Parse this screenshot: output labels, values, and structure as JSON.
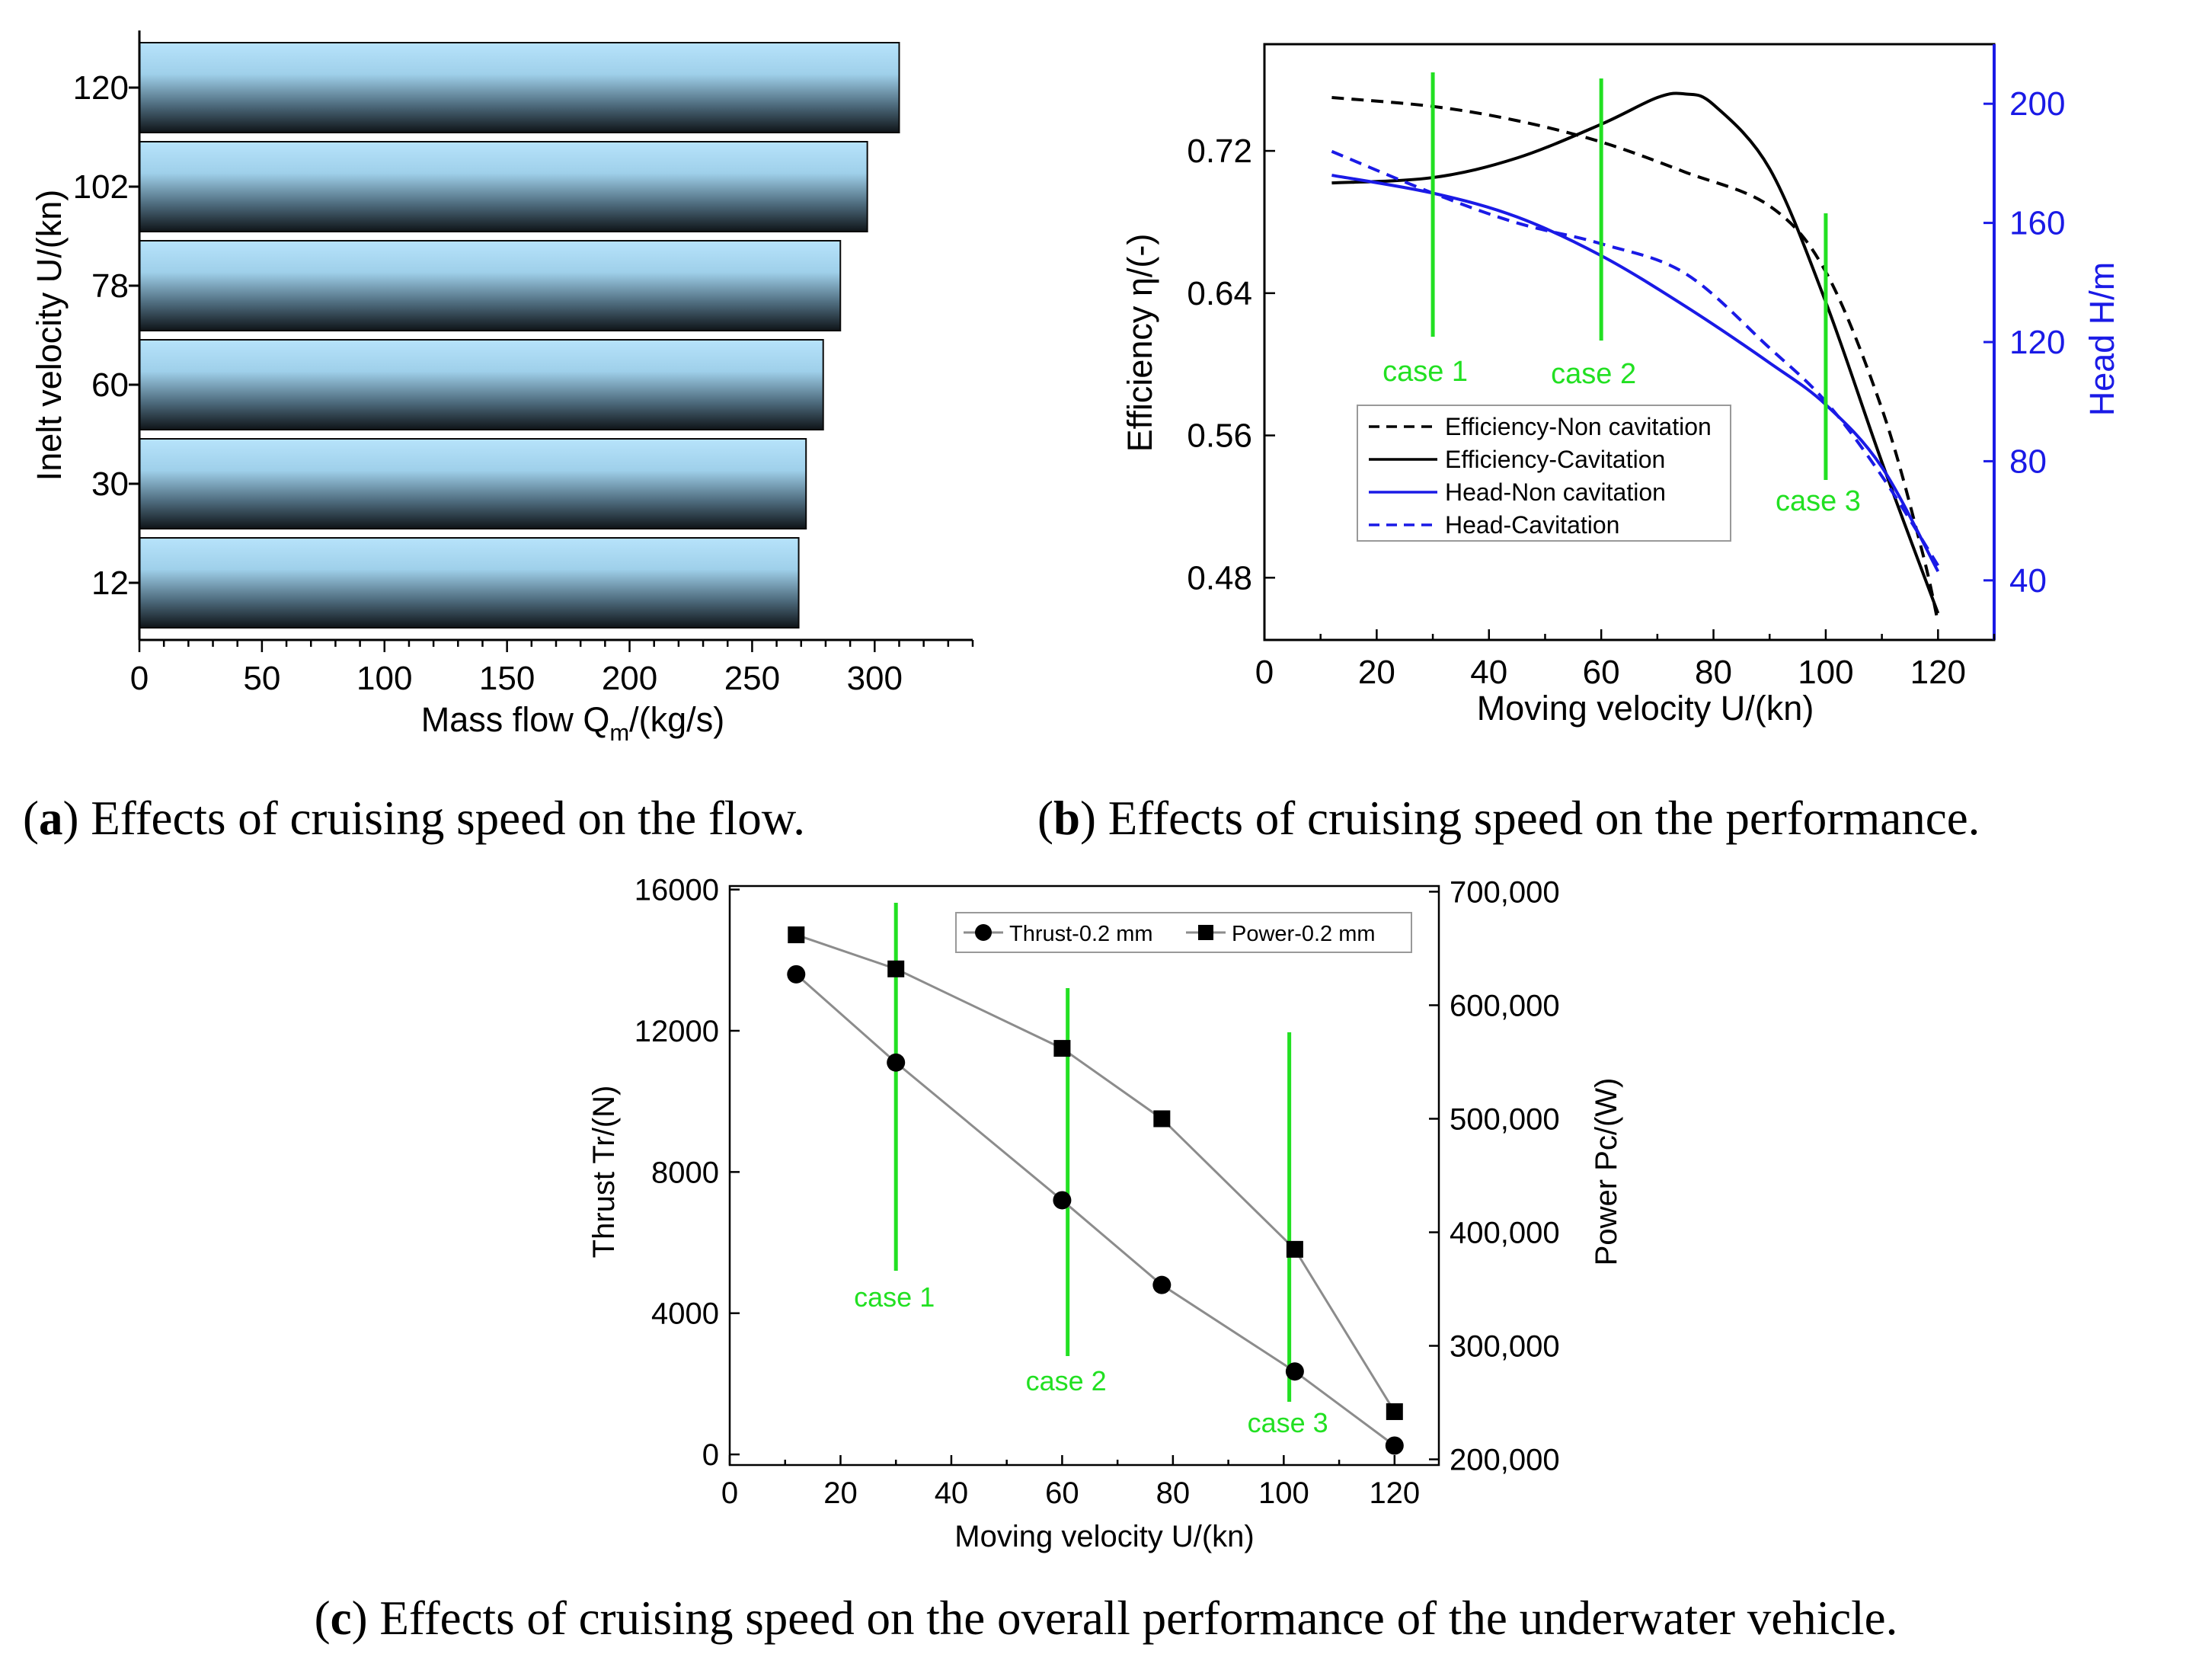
{
  "colors": {
    "axis": "#000000",
    "blue": "#1a1ae6",
    "case_green": "#22e022",
    "bar_top": "#b7e3fb",
    "bar_bottom": "#0f1418",
    "series_gray": "#8c8c8c"
  },
  "captions": {
    "a_letter": "a",
    "a_text": " Effects of cruising speed on the flow.",
    "b_letter": "b",
    "b_text": " Effects of cruising speed on the performance.",
    "c_letter": "c",
    "c_text": " Effects of cruising speed on the overall performance of the underwater vehicle."
  },
  "chart_data": [
    {
      "id": "a",
      "type": "bar",
      "orientation": "horizontal",
      "categories": [
        "120",
        "102",
        "78",
        "60",
        "30",
        "12"
      ],
      "values": [
        310,
        297,
        286,
        279,
        272,
        269
      ],
      "xlabel": "Mass flow Q",
      "xlabel_sub": "m",
      "xlabel_tail": "/(kg/s)",
      "ylabel": "Inelt velocity U/(kn)",
      "xlim": [
        0,
        340
      ],
      "xticks": [
        "0",
        "50",
        "100",
        "150",
        "200",
        "250",
        "300"
      ],
      "grid": false
    },
    {
      "id": "b",
      "type": "line",
      "xlabel": "Moving velocity U/(kn)",
      "ylabel_left": "Efficiency η/(-)",
      "ylabel_right": "Head H/m",
      "xlim": [
        0,
        130
      ],
      "ylim_left": [
        0.445,
        0.78
      ],
      "ylim_right": [
        20,
        220
      ],
      "xticks": [
        "0",
        "20",
        "40",
        "60",
        "80",
        "100",
        "120"
      ],
      "yticks_left": [
        "0.48",
        "0.56",
        "0.64",
        "0.72"
      ],
      "yticks_right": [
        "40",
        "80",
        "120",
        "160",
        "200"
      ],
      "legend_position": "bottom-left",
      "series": [
        {
          "name": "Efficiency-Non cavitation",
          "axis": "left",
          "style": "dashed",
          "color": "black",
          "x": [
            12,
            30,
            45,
            60,
            75,
            90,
            100,
            110,
            117,
            120
          ],
          "y": [
            0.75,
            0.745,
            0.737,
            0.725,
            0.708,
            0.689,
            0.652,
            0.575,
            0.497,
            0.455
          ]
        },
        {
          "name": "Efficiency-Cavitation",
          "axis": "left",
          "style": "solid",
          "color": "black",
          "x": [
            12,
            30,
            45,
            60,
            70,
            75,
            80,
            90,
            100,
            110,
            120
          ],
          "y": [
            0.702,
            0.705,
            0.716,
            0.735,
            0.75,
            0.752,
            0.746,
            0.71,
            0.635,
            0.545,
            0.46
          ]
        },
        {
          "name": "Head-Non cavitation",
          "axis": "right",
          "style": "solid",
          "color": "blue",
          "x": [
            12,
            30,
            45,
            60,
            75,
            90,
            100,
            110,
            120
          ],
          "y": [
            176,
            170,
            162,
            149,
            132,
            113,
            99,
            78,
            43
          ]
        },
        {
          "name": "Head-Cavitation",
          "axis": "right",
          "style": "dashed",
          "color": "blue",
          "x": [
            12,
            30,
            45,
            60,
            75,
            90,
            100,
            110,
            120
          ],
          "y": [
            184,
            170,
            160,
            153,
            143,
            118,
            100,
            75,
            45
          ]
        }
      ],
      "annotations": [
        {
          "label": "case 1",
          "x": 30
        },
        {
          "label": "case 2",
          "x": 60
        },
        {
          "label": "case 3",
          "x": 100
        }
      ]
    },
    {
      "id": "c",
      "type": "line",
      "xlabel": "Moving velocity U/(kn)",
      "ylabel_left": "Thrust Tr/(N)",
      "ylabel_right": "Power Pc/(W)",
      "xlim": [
        0,
        128
      ],
      "ylim_left": [
        -300,
        16100
      ],
      "ylim_right": [
        195000,
        705000
      ],
      "xticks": [
        "0",
        "20",
        "40",
        "60",
        "80",
        "100",
        "120"
      ],
      "yticks_left": [
        "0",
        "4000",
        "8000",
        "12000",
        "16000"
      ],
      "yticks_right": [
        "200,000",
        "300,000",
        "400,000",
        "500,000",
        "600,000",
        "700,000"
      ],
      "legend_position": "top-right",
      "series": [
        {
          "name": "Thrust-0.2 mm",
          "axis": "left",
          "marker": "circle",
          "x": [
            12,
            30,
            60,
            78,
            102,
            120
          ],
          "y": [
            13600,
            11100,
            7200,
            4800,
            2350,
            250
          ]
        },
        {
          "name": "Power-0.2 mm",
          "axis": "right",
          "marker": "square",
          "x": [
            12,
            30,
            60,
            78,
            102,
            120
          ],
          "y": [
            662000,
            632000,
            562000,
            500000,
            385000,
            242000
          ]
        }
      ],
      "annotations": [
        {
          "label": "case 1",
          "x": 30
        },
        {
          "label": "case 2",
          "x": 61
        },
        {
          "label": "case 3",
          "x": 101
        }
      ]
    }
  ]
}
